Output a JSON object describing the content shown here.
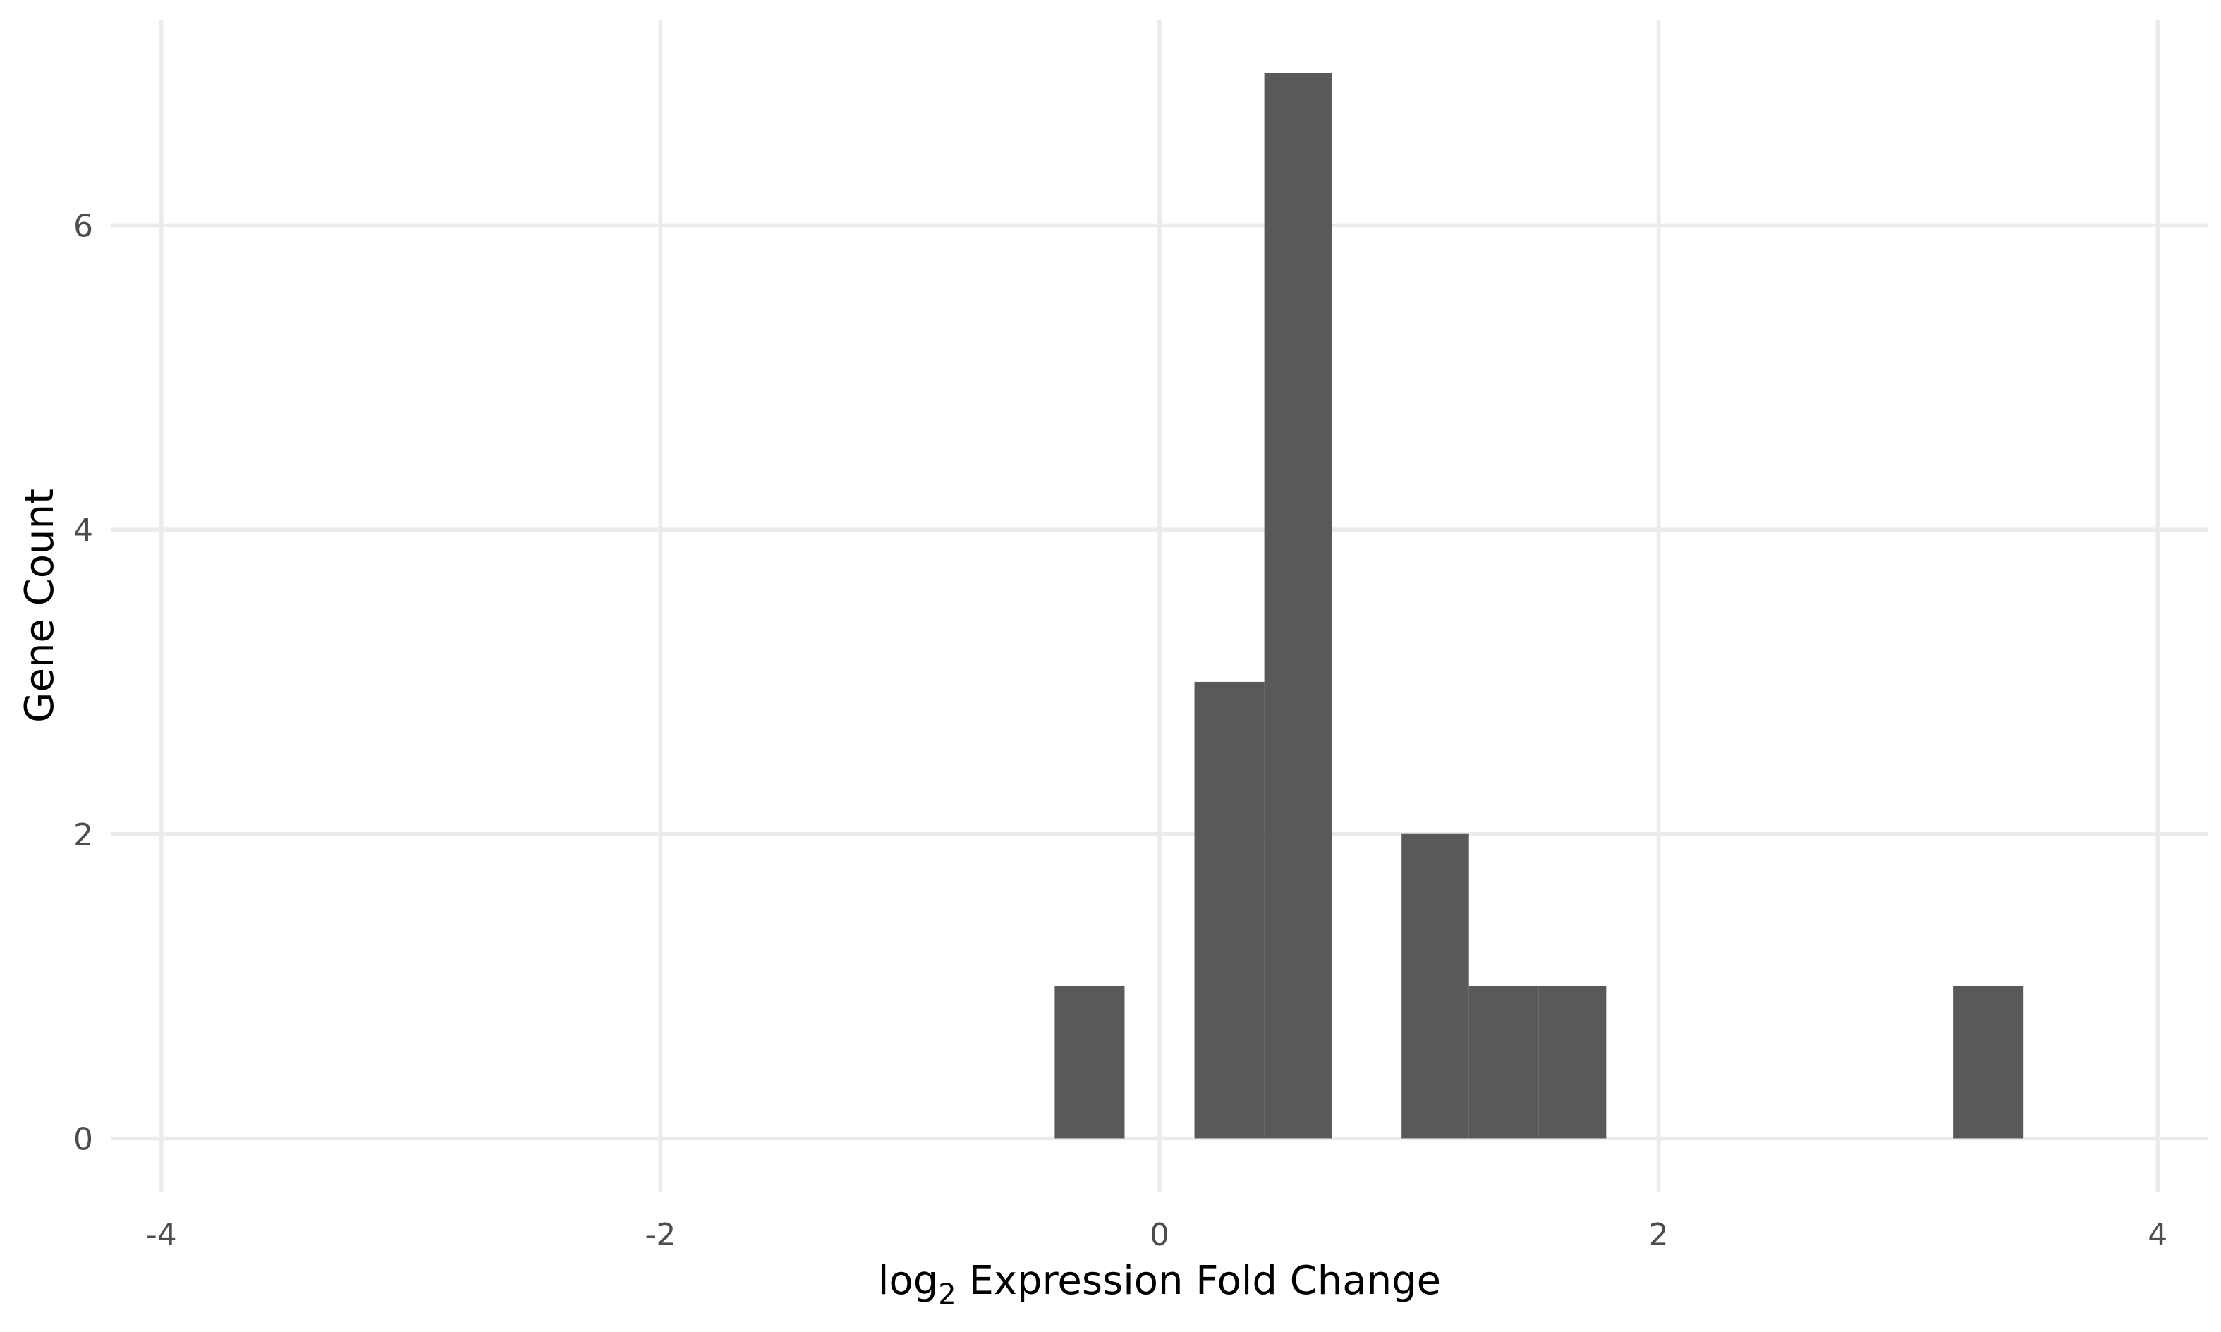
{
  "chart_data": {
    "type": "bar",
    "subtype": "histogram",
    "title": "",
    "xlabel": {
      "prefix": "log",
      "subscript": "2",
      "suffix": " Expression Fold Change"
    },
    "ylabel": "Gene Count",
    "xlim": [
      -4.2,
      4.2
    ],
    "ylim": [
      -0.35,
      7.35
    ],
    "x_ticks": [
      -4,
      -2,
      0,
      2,
      4
    ],
    "x_tick_labels": [
      "-4",
      "-2",
      "0",
      "2",
      "4"
    ],
    "y_ticks": [
      0,
      2,
      4,
      6
    ],
    "y_tick_labels": [
      "0",
      "2",
      "4",
      "6"
    ],
    "grid": true,
    "legend": "none",
    "bar_color": "#595959",
    "grid_color": "#ebebeb",
    "bins": [
      {
        "x0": -0.42,
        "x1": -0.14,
        "count": 1
      },
      {
        "x0": 0.14,
        "x1": 0.42,
        "count": 3
      },
      {
        "x0": 0.42,
        "x1": 0.69,
        "count": 7
      },
      {
        "x0": 0.97,
        "x1": 1.24,
        "count": 2
      },
      {
        "x0": 1.24,
        "x1": 1.52,
        "count": 1
      },
      {
        "x0": 1.52,
        "x1": 1.79,
        "count": 1
      },
      {
        "x0": 3.18,
        "x1": 3.46,
        "count": 1
      }
    ]
  }
}
